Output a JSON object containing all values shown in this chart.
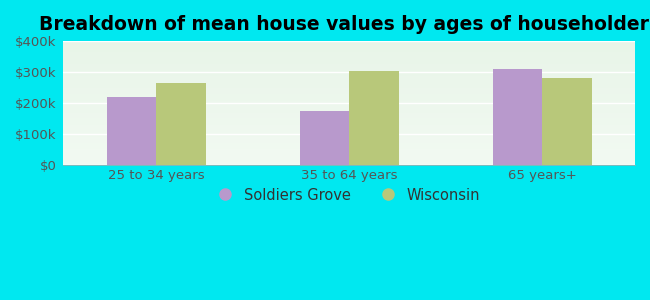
{
  "title": "Breakdown of mean house values by ages of householders",
  "categories": [
    "25 to 34 years",
    "35 to 64 years",
    "65 years+"
  ],
  "soldiers_grove": [
    220000,
    175000,
    310000
  ],
  "wisconsin": [
    265000,
    305000,
    280000
  ],
  "bar_color_sg": "#b899cc",
  "bar_color_wi": "#b8c87a",
  "background_outer": "#00e8f0",
  "background_inner_top": "#e8f5e8",
  "background_inner_bottom": "#f5fff5",
  "ylim": [
    0,
    400000
  ],
  "yticks": [
    0,
    100000,
    200000,
    300000,
    400000
  ],
  "ytick_labels": [
    "$0",
    "$100k",
    "$200k",
    "$300k",
    "$400k"
  ],
  "legend_labels": [
    "Soldiers Grove",
    "Wisconsin"
  ],
  "bar_width": 0.32,
  "title_fontsize": 13.5,
  "tick_fontsize": 9.5,
  "legend_fontsize": 10.5
}
